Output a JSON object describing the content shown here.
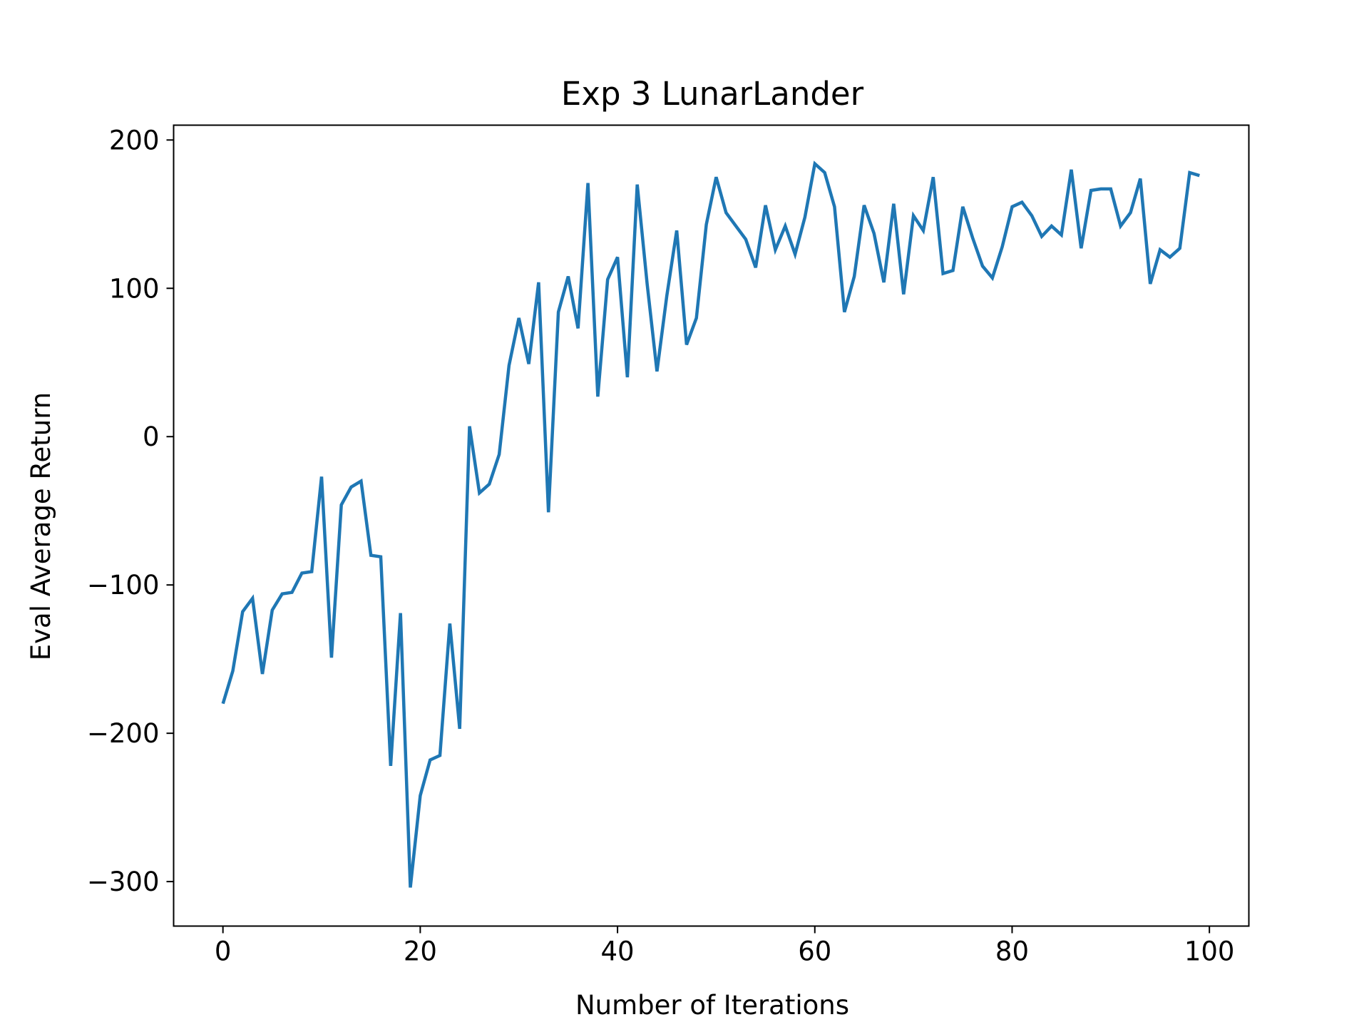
{
  "chart_data": {
    "type": "line",
    "title": "Exp 3 LunarLander",
    "xlabel": "Number of Iterations",
    "ylabel": "Eval Average Return",
    "xlim": [
      -5,
      104
    ],
    "ylim": [
      -330,
      210
    ],
    "xticks": [
      0,
      20,
      40,
      60,
      80,
      100
    ],
    "yticks": [
      -300,
      -200,
      -100,
      0,
      100,
      200
    ],
    "xtick_labels": [
      "0",
      "20",
      "40",
      "60",
      "80",
      "100"
    ],
    "ytick_labels": [
      "−300",
      "−200",
      "−100",
      "0",
      "100",
      "200"
    ],
    "grid": false,
    "series": [
      {
        "color": "#1f77b4",
        "x": [
          0,
          1,
          2,
          3,
          4,
          5,
          6,
          7,
          8,
          9,
          10,
          11,
          12,
          13,
          14,
          15,
          16,
          17,
          18,
          19,
          20,
          21,
          22,
          23,
          24,
          25,
          26,
          27,
          28,
          29,
          30,
          31,
          32,
          33,
          34,
          35,
          36,
          37,
          38,
          39,
          40,
          41,
          42,
          43,
          44,
          45,
          46,
          47,
          48,
          49,
          50,
          51,
          52,
          53,
          54,
          55,
          56,
          57,
          58,
          59,
          60,
          61,
          62,
          63,
          64,
          65,
          66,
          67,
          68,
          69,
          70,
          71,
          72,
          73,
          74,
          75,
          76,
          77,
          78,
          79,
          80,
          81,
          82,
          83,
          84,
          85,
          86,
          87,
          88,
          89,
          90,
          91,
          92,
          93,
          94,
          95,
          96,
          97,
          98,
          99
        ],
        "y": [
          -180,
          -158,
          -118,
          -109,
          -160,
          -117,
          -106,
          -105,
          -92,
          -91,
          -27,
          -149,
          -46,
          -34,
          -30,
          -80,
          -81,
          -222,
          -119,
          -304,
          -242,
          -218,
          -215,
          -126,
          -197,
          7,
          -38,
          -32,
          -12,
          48,
          80,
          49,
          104,
          -51,
          84,
          108,
          73,
          171,
          27,
          106,
          121,
          40,
          170,
          103,
          44,
          95,
          139,
          62,
          80,
          143,
          175,
          151,
          142,
          133,
          114,
          156,
          126,
          142,
          123,
          148,
          184,
          178,
          155,
          84,
          108,
          156,
          137,
          104,
          157,
          96,
          149,
          139,
          175,
          110,
          112,
          155,
          134,
          115,
          107,
          128,
          155,
          158,
          149,
          135,
          142,
          136,
          180,
          127,
          166,
          167,
          167,
          142,
          151,
          174,
          103,
          126,
          121,
          127,
          178,
          176
        ]
      }
    ]
  }
}
